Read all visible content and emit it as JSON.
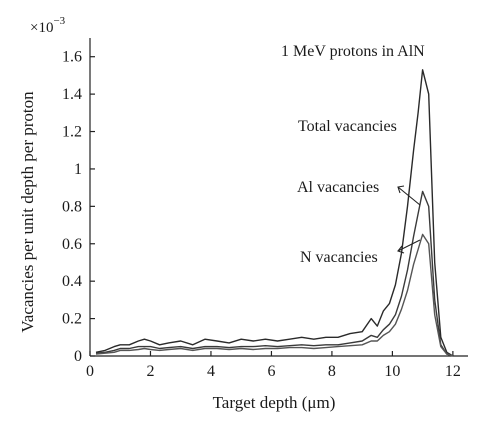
{
  "chart_data": {
    "type": "line",
    "title": "1 MeV protons in AlN",
    "xlabel": "Target depth (μm)",
    "ylabel": "Vacancies per unit depth per proton",
    "y_multiplier": "×10",
    "y_multiplier_exp": "−3",
    "xlim": [
      0,
      12.5
    ],
    "ylim": [
      0,
      1.7
    ],
    "x_ticks": [
      0,
      2,
      4,
      6,
      8,
      10,
      12
    ],
    "y_ticks": [
      0,
      0.2,
      0.4,
      0.6,
      0.8,
      1,
      1.2,
      1.4,
      1.6
    ],
    "x_tick_labels": [
      "0",
      "2",
      "4",
      "6",
      "8",
      "10",
      "12"
    ],
    "y_tick_labels": [
      "0",
      "0.2",
      "0.4",
      "0.6",
      "0.8",
      "1",
      "1.2",
      "1.4",
      "1.6"
    ],
    "grid": false,
    "series": [
      {
        "name": "Total vacancies",
        "color": "#2a2a2a",
        "x": [
          0.2,
          0.5,
          0.8,
          1.0,
          1.3,
          1.6,
          1.8,
          2.0,
          2.3,
          2.6,
          3.0,
          3.4,
          3.8,
          4.2,
          4.6,
          5.0,
          5.4,
          5.8,
          6.2,
          6.6,
          7.0,
          7.4,
          7.8,
          8.2,
          8.6,
          9.0,
          9.3,
          9.5,
          9.7,
          9.9,
          10.1,
          10.3,
          10.5,
          10.7,
          10.85,
          11.0,
          11.2,
          11.4,
          11.6,
          11.8,
          12.0
        ],
        "y": [
          0.02,
          0.03,
          0.05,
          0.06,
          0.06,
          0.08,
          0.09,
          0.08,
          0.06,
          0.07,
          0.08,
          0.06,
          0.09,
          0.08,
          0.07,
          0.09,
          0.08,
          0.09,
          0.08,
          0.09,
          0.1,
          0.09,
          0.1,
          0.1,
          0.12,
          0.13,
          0.2,
          0.16,
          0.24,
          0.28,
          0.38,
          0.55,
          0.8,
          1.1,
          1.3,
          1.53,
          1.4,
          0.5,
          0.1,
          0.02,
          0.0
        ]
      },
      {
        "name": "Al vacancies",
        "color": "#3a3a3a",
        "x": [
          0.2,
          0.5,
          0.8,
          1.0,
          1.3,
          1.6,
          1.8,
          2.0,
          2.3,
          2.6,
          3.0,
          3.4,
          3.8,
          4.2,
          4.6,
          5.0,
          5.4,
          5.8,
          6.2,
          6.6,
          7.0,
          7.4,
          7.8,
          8.2,
          8.6,
          9.0,
          9.3,
          9.5,
          9.7,
          9.9,
          10.1,
          10.3,
          10.5,
          10.7,
          10.85,
          11.0,
          11.2,
          11.4,
          11.6,
          11.8,
          12.0
        ],
        "y": [
          0.015,
          0.02,
          0.03,
          0.04,
          0.04,
          0.05,
          0.05,
          0.05,
          0.04,
          0.045,
          0.05,
          0.04,
          0.05,
          0.05,
          0.045,
          0.05,
          0.05,
          0.055,
          0.05,
          0.055,
          0.06,
          0.055,
          0.06,
          0.06,
          0.07,
          0.08,
          0.11,
          0.1,
          0.14,
          0.17,
          0.22,
          0.32,
          0.46,
          0.64,
          0.76,
          0.88,
          0.8,
          0.3,
          0.06,
          0.01,
          0.0
        ]
      },
      {
        "name": "N vacancies",
        "color": "#555555",
        "x": [
          0.2,
          0.5,
          0.8,
          1.0,
          1.3,
          1.6,
          1.8,
          2.0,
          2.3,
          2.6,
          3.0,
          3.4,
          3.8,
          4.2,
          4.6,
          5.0,
          5.4,
          5.8,
          6.2,
          6.6,
          7.0,
          7.4,
          7.8,
          8.2,
          8.6,
          9.0,
          9.3,
          9.5,
          9.7,
          9.9,
          10.1,
          10.3,
          10.5,
          10.7,
          10.85,
          11.0,
          11.2,
          11.4,
          11.6,
          11.8,
          12.0
        ],
        "y": [
          0.01,
          0.015,
          0.02,
          0.03,
          0.03,
          0.035,
          0.04,
          0.035,
          0.03,
          0.035,
          0.04,
          0.03,
          0.04,
          0.04,
          0.035,
          0.04,
          0.035,
          0.04,
          0.04,
          0.045,
          0.045,
          0.04,
          0.045,
          0.05,
          0.055,
          0.06,
          0.08,
          0.08,
          0.11,
          0.13,
          0.17,
          0.25,
          0.35,
          0.49,
          0.57,
          0.65,
          0.6,
          0.22,
          0.05,
          0.01,
          0.0
        ]
      }
    ],
    "annotations": [
      {
        "text": "Total vacancies",
        "series": "Total vacancies"
      },
      {
        "text": "Al vacancies",
        "series": "Al vacancies"
      },
      {
        "text": "N vacancies",
        "series": "N vacancies"
      }
    ]
  }
}
